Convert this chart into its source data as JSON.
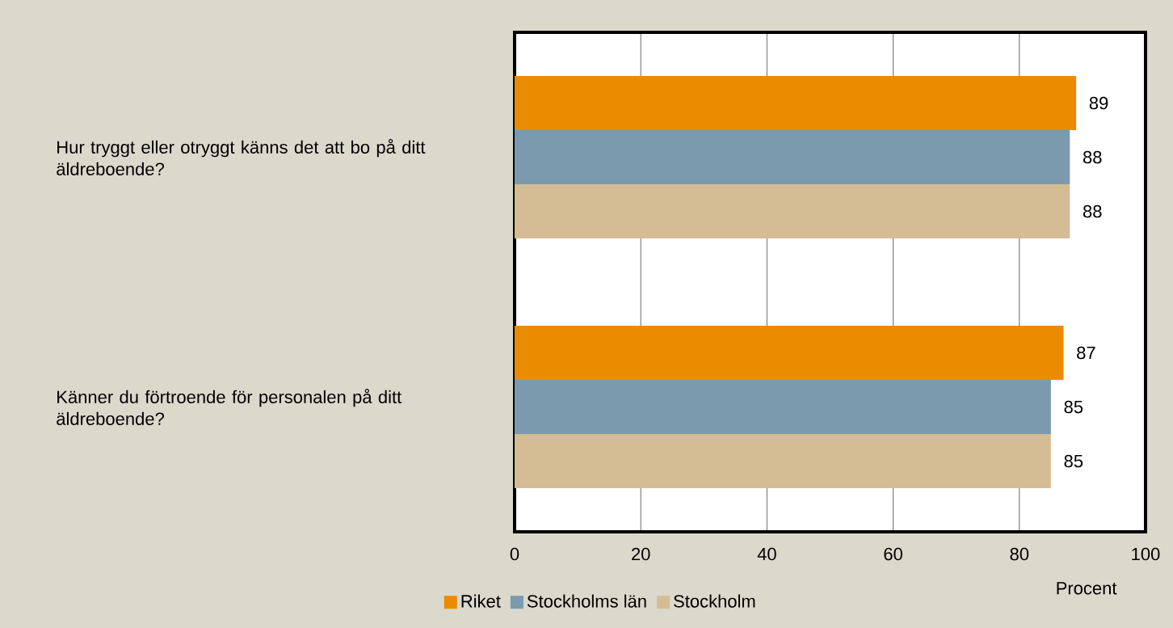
{
  "chart_data": {
    "type": "bar",
    "orientation": "horizontal",
    "xlabel": "Procent",
    "categories": [
      "Hur tryggt eller otryggt känns det att bo på ditt äldreboende?",
      "Känner du förtroende för personalen på ditt äldreboende?"
    ],
    "series": [
      {
        "name": "Riket",
        "color": "#eb8c00",
        "values": [
          89,
          87
        ]
      },
      {
        "name": "Stockholms län",
        "color": "#7b9aad",
        "values": [
          88,
          85
        ]
      },
      {
        "name": "Stockholm",
        "color": "#d4bd94",
        "values": [
          88,
          85
        ]
      }
    ],
    "xlim": [
      0,
      100
    ],
    "xticks": [
      0,
      20,
      40,
      60,
      80,
      100
    ],
    "grid": "x",
    "legend": "bottom",
    "data_labels": true
  }
}
